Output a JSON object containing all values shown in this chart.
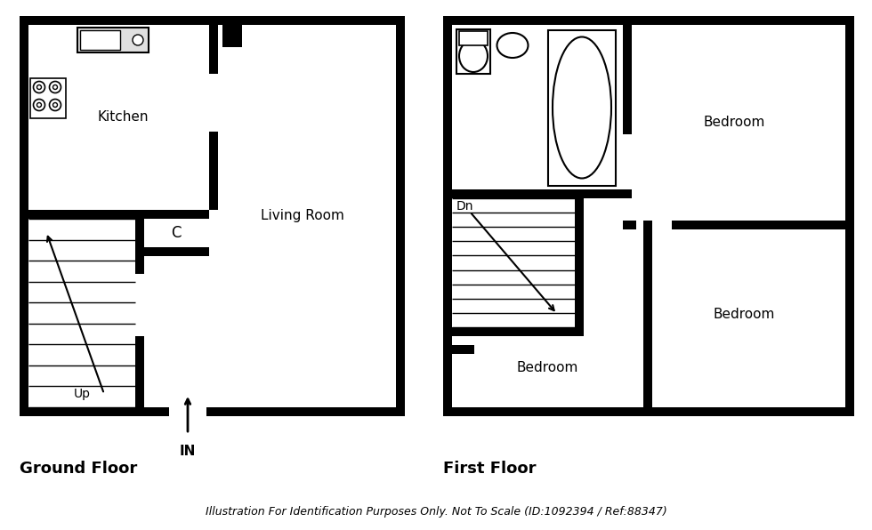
{
  "bg_color": "#ffffff",
  "wall_color": "#000000",
  "ground_floor_label": "Ground Floor",
  "first_floor_label": "First Floor",
  "footer_text": "Illustration For Identification Purposes Only. Not To Scale (ID:1092394 / Ref:88347)",
  "kitchen": "Kitchen",
  "living_room": "Living Room",
  "closet": "C",
  "up": "Up",
  "dn": "Dn",
  "in_label": "IN",
  "bedroom1": "Bedroom",
  "bedroom2": "Bedroom",
  "bedroom3": "Bedroom",
  "T": 10
}
